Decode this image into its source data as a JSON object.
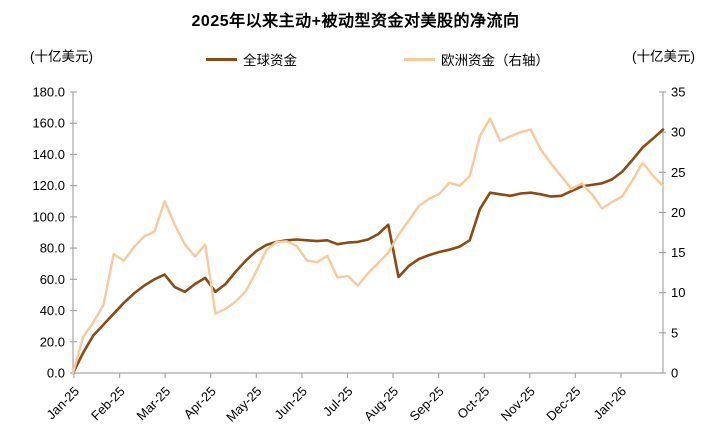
{
  "title": "2025年以来主动+被动型资金对美股的净流向",
  "left_axis_unit": "(十亿美元)",
  "right_axis_unit": "(十亿美元)",
  "legend": {
    "global": "全球资金",
    "europe": "欧洲资金（右轴）"
  },
  "colors": {
    "global_line": "#8b4a14",
    "europe_line": "#f7c99c",
    "axis": "#a6a6a6",
    "text": "#000000",
    "background": "#ffffff"
  },
  "chart_data": {
    "type": "line",
    "title": "2025年以来主动+被动型资金对美股的净流向",
    "frequency": "weekly",
    "x_tick_labels": [
      "Jan-25",
      "Feb-25",
      "Mar-25",
      "Apr-25",
      "May-25",
      "Jun-25",
      "Jul-25",
      "Aug-25",
      "Sep-25",
      "Oct-25",
      "Nov-25",
      "Dec-25",
      "Jan-26"
    ],
    "left_axis": {
      "unit": "(十亿美元)",
      "min": 0,
      "max": 180,
      "tick_step": 20,
      "tick_labels": [
        "0.0",
        "20.0",
        "40.0",
        "60.0",
        "80.0",
        "100.0",
        "120.0",
        "140.0",
        "160.0",
        "180.0"
      ]
    },
    "right_axis": {
      "unit": "(十亿美元)",
      "min": 0,
      "max": 35,
      "tick_step": 5,
      "tick_labels": [
        "0",
        "5",
        "10",
        "15",
        "20",
        "25",
        "30",
        "35"
      ]
    },
    "grid": false,
    "legend_position": "top-center",
    "series": [
      {
        "name": "全球资金",
        "axis": "left",
        "color": "#8b4a14",
        "values": [
          0,
          13,
          24,
          31,
          38,
          45,
          51,
          56,
          60,
          63,
          55,
          52,
          57,
          61,
          52,
          57,
          65,
          72,
          78,
          82,
          84,
          85,
          85.5,
          85,
          84.5,
          85,
          82.5,
          83.5,
          84,
          85.5,
          89,
          95,
          61.5,
          68.5,
          73,
          75.5,
          77.5,
          79,
          81,
          85,
          105,
          115.5,
          114.5,
          113.5,
          115,
          115.5,
          114.5,
          113,
          113.5,
          116.5,
          119.5,
          120.5,
          121.5,
          124,
          129,
          136.5,
          144.5,
          150,
          156
        ]
      },
      {
        "name": "欧洲资金（右轴）",
        "axis": "right",
        "color": "#f7c99c",
        "values": [
          0,
          4.5,
          6.3,
          8.5,
          14.8,
          14,
          15.7,
          17,
          17.6,
          21.4,
          18.5,
          16,
          14.5,
          16,
          7.4,
          8,
          8.9,
          10.2,
          12.6,
          15.3,
          16.3,
          16.4,
          15.8,
          14,
          13.8,
          14.6,
          11.9,
          12.1,
          10.9,
          12.4,
          13.7,
          15,
          17.2,
          19,
          20.8,
          21.7,
          22.3,
          23.7,
          23.3,
          24.5,
          29.5,
          31.7,
          28.9,
          29.5,
          30,
          30.3,
          27.8,
          26.1,
          24.5,
          22.9,
          23.6,
          22.3,
          20.5,
          21.3,
          22,
          24,
          26.2,
          24.6,
          23.3
        ]
      }
    ]
  }
}
